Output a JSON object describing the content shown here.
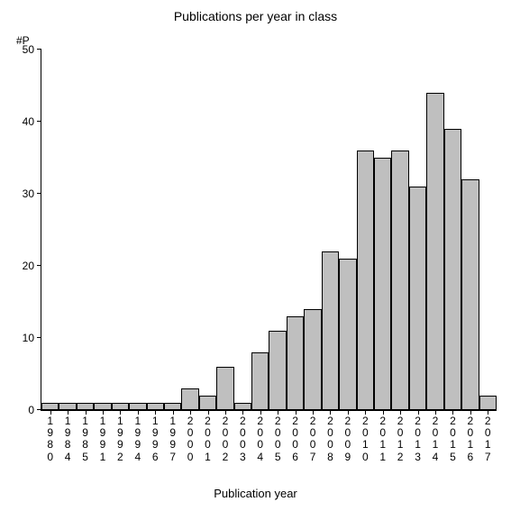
{
  "chart": {
    "type": "bar",
    "title": "Publications per year in class",
    "y_axis_corner_label": "#P",
    "xlabel": "Publication year",
    "categories": [
      "1980",
      "1984",
      "1985",
      "1991",
      "1992",
      "1994",
      "1996",
      "1997",
      "2000",
      "2001",
      "2002",
      "2003",
      "2004",
      "2005",
      "2006",
      "2007",
      "2008",
      "2009",
      "2010",
      "2011",
      "2012",
      "2013",
      "2014",
      "2015",
      "2016",
      "2017"
    ],
    "values": [
      1,
      1,
      1,
      1,
      1,
      1,
      1,
      1,
      3,
      2,
      6,
      1,
      8,
      11,
      13,
      14,
      22,
      21,
      36,
      35,
      36,
      31,
      44,
      39,
      32,
      2
    ],
    "bar_color": "#bfbfbf",
    "bar_border_color": "#000000",
    "background_color": "#ffffff",
    "axis_color": "#000000",
    "ylim": [
      0,
      50
    ],
    "ytick_step": 10,
    "yticks": [
      0,
      10,
      20,
      30,
      40,
      50
    ],
    "title_fontsize": 14,
    "label_fontsize": 13,
    "tick_fontsize": 12,
    "bar_width": 1.0
  }
}
